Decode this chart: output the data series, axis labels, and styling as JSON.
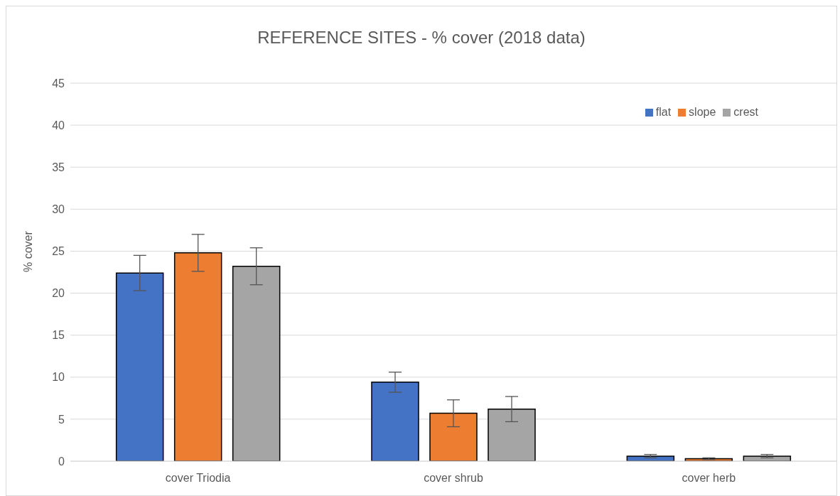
{
  "chart_data": {
    "type": "bar",
    "title": "REFERENCE SITES - % cover  (2018 data)",
    "ylabel": "% cover",
    "categories": [
      "cover Triodia",
      "cover shrub",
      "cover herb"
    ],
    "series": [
      {
        "name": "flat",
        "color": "#4472c4",
        "values": [
          22.4,
          9.4,
          0.6
        ],
        "errors": [
          2.1,
          1.2,
          0.2
        ]
      },
      {
        "name": "slope",
        "color": "#ed7d31",
        "values": [
          24.8,
          5.7,
          0.3
        ],
        "errors": [
          2.2,
          1.6,
          0.1
        ]
      },
      {
        "name": "crest",
        "color": "#a5a5a5",
        "values": [
          23.2,
          6.2,
          0.6
        ],
        "errors": [
          2.2,
          1.5,
          0.2
        ]
      }
    ],
    "ylim": [
      0,
      45
    ],
    "yticks": [
      0,
      5,
      10,
      15,
      20,
      25,
      30,
      35,
      40,
      45
    ],
    "grid": "y",
    "legend": "top right"
  }
}
